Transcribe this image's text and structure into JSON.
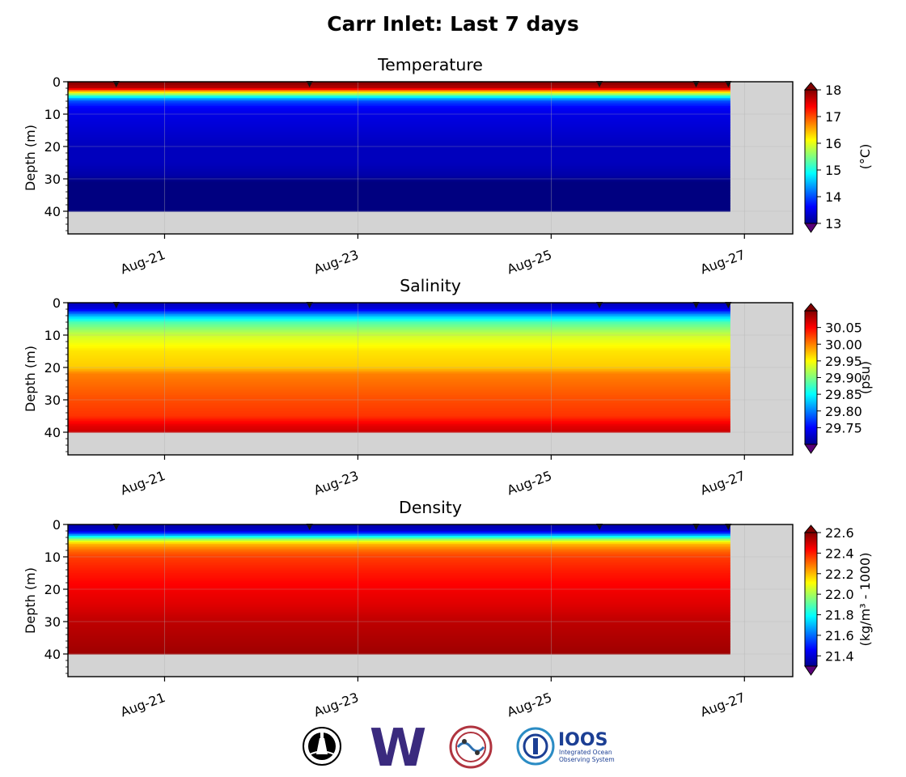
{
  "figure_title": "Carr Inlet: Last 7 days",
  "colors": {
    "nodata": "#d3d3d3",
    "grid": "#b0b0b0",
    "marker": "#111111",
    "uw_purple": "#3a2a7e",
    "ioos_blue": "#1c3f94",
    "ioos_teal": "#2b8cc4"
  },
  "logos": [
    {
      "name": "ORCA buoy seal",
      "icon": "seal-logo"
    },
    {
      "name": "UW",
      "icon": "uw-w-logo",
      "text": "W"
    },
    {
      "name": "NANOOS",
      "icon": "nanoos-logo"
    },
    {
      "name": "IOOS",
      "icon": "ioos-logo",
      "text": "IOOS",
      "subtext": [
        "Integrated Ocean",
        "Observing System"
      ]
    }
  ],
  "chart_data": [
    {
      "type": "heatmap",
      "title": "Temperature",
      "ylabel": "Depth (m)",
      "xlim": [
        "2025-08-20",
        "2025-08-27T12:00"
      ],
      "ylim": [
        47,
        0
      ],
      "x_ticks": [
        "Aug-21",
        "Aug-23",
        "Aug-25",
        "Aug-27"
      ],
      "y_ticks": [
        0,
        10,
        20,
        30,
        40
      ],
      "data_extent": {
        "start": "2025-08-20",
        "end": "2025-08-26T20:30",
        "max_depth": 40
      },
      "cast_times": [
        "2025-08-20T12:00",
        "2025-08-22T12:00",
        "2025-08-25T12:00",
        "2025-08-26T12:00",
        "2025-08-26T20:00"
      ],
      "colorbar": {
        "label": "(°C)",
        "min": 13,
        "max": 18,
        "ticks": [
          "13",
          "14",
          "15",
          "16",
          "17",
          "18"
        ],
        "extend": "both"
      },
      "profile_depths": [
        0,
        2,
        3,
        4,
        5,
        6,
        8,
        10,
        15,
        20,
        25,
        29,
        31,
        35,
        40
      ],
      "profile_values": [
        18.0,
        17.7,
        16.5,
        15.5,
        14.6,
        14.0,
        13.6,
        13.5,
        13.4,
        13.3,
        13.3,
        13.2,
        13.0,
        12.95,
        13.0
      ]
    },
    {
      "type": "heatmap",
      "title": "Salinity",
      "ylabel": "Depth (m)",
      "xlim": [
        "2025-08-20",
        "2025-08-27T12:00"
      ],
      "ylim": [
        47,
        0
      ],
      "x_ticks": [
        "Aug-21",
        "Aug-23",
        "Aug-25",
        "Aug-27"
      ],
      "y_ticks": [
        0,
        10,
        20,
        30,
        40
      ],
      "data_extent": {
        "start": "2025-08-20",
        "end": "2025-08-26T20:30",
        "max_depth": 40
      },
      "cast_times": [
        "2025-08-20T12:00",
        "2025-08-22T12:00",
        "2025-08-25T12:00",
        "2025-08-26T12:00",
        "2025-08-26T20:00"
      ],
      "colorbar": {
        "label": "(psu)",
        "min": 29.7,
        "max": 30.1,
        "ticks": [
          "29.75",
          "29.80",
          "29.85",
          "29.90",
          "29.95",
          "30.00",
          "30.05"
        ],
        "extend": "both"
      },
      "profile_depths": [
        0,
        2,
        3,
        4,
        6,
        10,
        15,
        20,
        22,
        30,
        35,
        38,
        40
      ],
      "profile_values": [
        29.72,
        29.74,
        29.78,
        29.82,
        29.88,
        29.93,
        29.96,
        29.97,
        30.0,
        30.02,
        30.03,
        30.06,
        30.07
      ]
    },
    {
      "type": "heatmap",
      "title": "Density",
      "ylabel": "Depth (m)",
      "xlim": [
        "2025-08-20",
        "2025-08-27T12:00"
      ],
      "ylim": [
        47,
        0
      ],
      "x_ticks": [
        "Aug-21",
        "Aug-23",
        "Aug-25",
        "Aug-27"
      ],
      "y_ticks": [
        0,
        10,
        20,
        30,
        40
      ],
      "data_extent": {
        "start": "2025-08-20",
        "end": "2025-08-26T20:30",
        "max_depth": 40
      },
      "cast_times": [
        "2025-08-20T12:00",
        "2025-08-22T12:00",
        "2025-08-25T12:00",
        "2025-08-26T12:00",
        "2025-08-26T20:00"
      ],
      "colorbar": {
        "label": "(kg/m³ - 1000)",
        "min": 21.3,
        "max": 22.6,
        "ticks": [
          "21.4",
          "21.6",
          "21.8",
          "22.0",
          "22.2",
          "22.4",
          "22.6"
        ],
        "extend": "both"
      },
      "profile_depths": [
        0,
        2,
        3,
        4,
        5,
        6,
        8,
        10,
        15,
        20,
        25,
        30,
        35,
        40
      ],
      "profile_values": [
        21.35,
        21.4,
        21.6,
        21.85,
        22.05,
        22.2,
        22.3,
        22.36,
        22.41,
        22.45,
        22.48,
        22.52,
        22.54,
        22.56
      ]
    }
  ]
}
